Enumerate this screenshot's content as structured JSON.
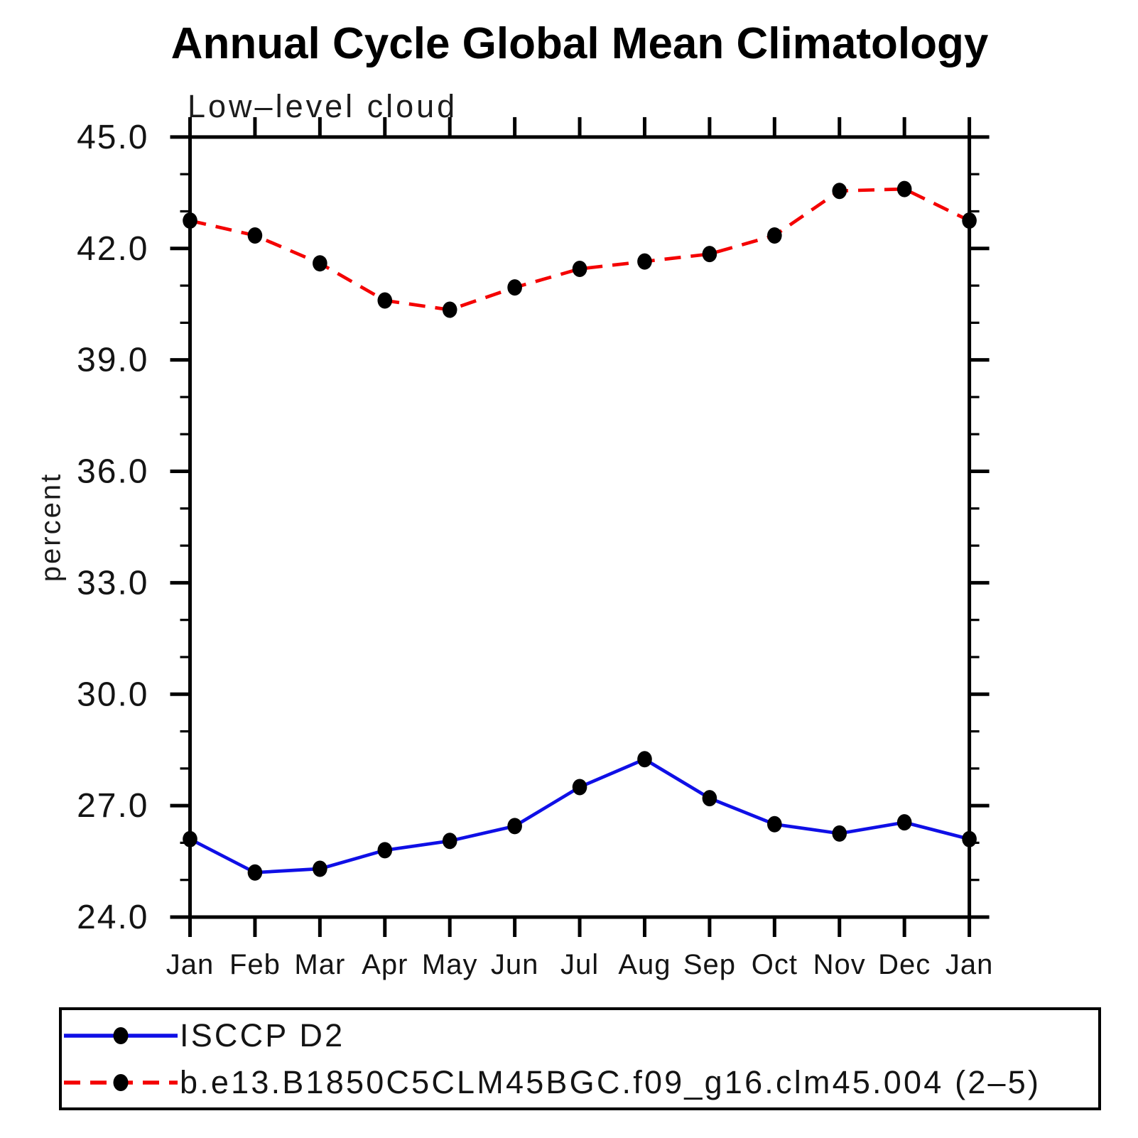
{
  "page": {
    "background": "#ffffff",
    "axis_color": "#000000",
    "text_color": "#141414"
  },
  "chart_data": {
    "type": "line",
    "title": "Annual Cycle Global Mean Climatology",
    "subtitle": "Low–level cloud",
    "ylabel": "percent",
    "xlabel": "",
    "categories": [
      "Jan",
      "Feb",
      "Mar",
      "Apr",
      "May",
      "Jun",
      "Jul",
      "Aug",
      "Sep",
      "Oct",
      "Nov",
      "Dec",
      "Jan"
    ],
    "y_tick_labels": [
      "24.0",
      "27.0",
      "30.0",
      "33.0",
      "36.0",
      "39.0",
      "42.0",
      "45.0"
    ],
    "ylim": [
      24.0,
      45.0
    ],
    "y_major_step": 3.0,
    "y_minor_step": 1.0,
    "grid": false,
    "legend_position": "bottom",
    "marker": "filled-circle",
    "marker_color": "#000000",
    "series": [
      {
        "name": "ISCCP D2",
        "color": "#0f0fe6",
        "line_style": "solid",
        "values": [
          26.1,
          25.2,
          25.3,
          25.8,
          26.05,
          26.45,
          27.5,
          28.25,
          27.2,
          26.5,
          26.25,
          26.55,
          26.1
        ]
      },
      {
        "name": "b.e13.B1850C5CLM45BGC.f09_g16.clm45.004 (2–5)",
        "color": "#f40000",
        "line_style": "dashed",
        "values": [
          42.75,
          42.35,
          41.6,
          40.6,
          40.35,
          40.95,
          41.45,
          41.65,
          41.85,
          42.35,
          43.55,
          43.6,
          42.75
        ]
      }
    ]
  }
}
